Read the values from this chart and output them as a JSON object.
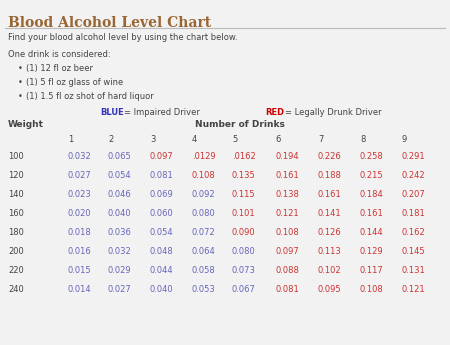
{
  "title": "Blood Alcohol Level Chart",
  "subtitle": "Find your blood alcohol level by using the chart below.",
  "drinks_label": "One drink is considered:",
  "bullets": [
    "(1) 12 fl oz beer",
    "(1) 5 fl oz glass of wine",
    "(1) 1.5 fl oz shot of hard liquor"
  ],
  "col_header": "Number of Drinks",
  "row_header": "Weight",
  "drinks": [
    "1",
    "2",
    "3",
    "4",
    "5",
    "6",
    "7",
    "8",
    "9"
  ],
  "weights": [
    "100",
    "120",
    "140",
    "160",
    "180",
    "200",
    "220",
    "240"
  ],
  "table_data": [
    [
      "0.032",
      "0.065",
      "0.097",
      ".0129",
      ".0162",
      "0.194",
      "0.226",
      "0.258",
      "0.291"
    ],
    [
      "0.027",
      "0.054",
      "0.081",
      "0.108",
      "0.135",
      "0.161",
      "0.188",
      "0.215",
      "0.242"
    ],
    [
      "0.023",
      "0.046",
      "0.069",
      "0.092",
      "0.115",
      "0.138",
      "0.161",
      "0.184",
      "0.207"
    ],
    [
      "0.020",
      "0.040",
      "0.060",
      "0.080",
      "0.101",
      "0.121",
      "0.141",
      "0.161",
      "0.181"
    ],
    [
      "0.018",
      "0.036",
      "0.054",
      "0.072",
      "0.090",
      "0.108",
      "0.126",
      "0.144",
      "0.162"
    ],
    [
      "0.016",
      "0.032",
      "0.048",
      "0.064",
      "0.080",
      "0.097",
      "0.113",
      "0.129",
      "0.145"
    ],
    [
      "0.015",
      "0.029",
      "0.044",
      "0.058",
      "0.073",
      "0.088",
      "0.102",
      "0.117",
      "0.131"
    ],
    [
      "0.014",
      "0.027",
      "0.040",
      "0.053",
      "0.067",
      "0.081",
      "0.095",
      "0.108",
      "0.121"
    ]
  ],
  "cell_colors": [
    [
      "blue",
      "blue",
      "red",
      "red",
      "red",
      "red",
      "red",
      "red",
      "red"
    ],
    [
      "blue",
      "blue",
      "blue",
      "red",
      "red",
      "red",
      "red",
      "red",
      "red"
    ],
    [
      "blue",
      "blue",
      "blue",
      "blue",
      "red",
      "red",
      "red",
      "red",
      "red"
    ],
    [
      "blue",
      "blue",
      "blue",
      "blue",
      "red",
      "red",
      "red",
      "red",
      "red"
    ],
    [
      "blue",
      "blue",
      "blue",
      "blue",
      "red",
      "red",
      "red",
      "red",
      "red"
    ],
    [
      "blue",
      "blue",
      "blue",
      "blue",
      "blue",
      "red",
      "red",
      "red",
      "red"
    ],
    [
      "blue",
      "blue",
      "blue",
      "blue",
      "blue",
      "red",
      "red",
      "red",
      "red"
    ],
    [
      "blue",
      "blue",
      "blue",
      "blue",
      "blue",
      "red",
      "red",
      "red",
      "red"
    ]
  ],
  "color_blue": "#6666bb",
  "color_red": "#cc3333",
  "color_dark": "#444444",
  "color_title": "#996633",
  "color_legend_blue": "#3333bb",
  "color_legend_red": "#cc0000",
  "bg_color": "#f2f2f2",
  "title_line_color": "#bbbbbb",
  "font_size_title": 10,
  "font_size_text": 6,
  "font_size_table": 6
}
